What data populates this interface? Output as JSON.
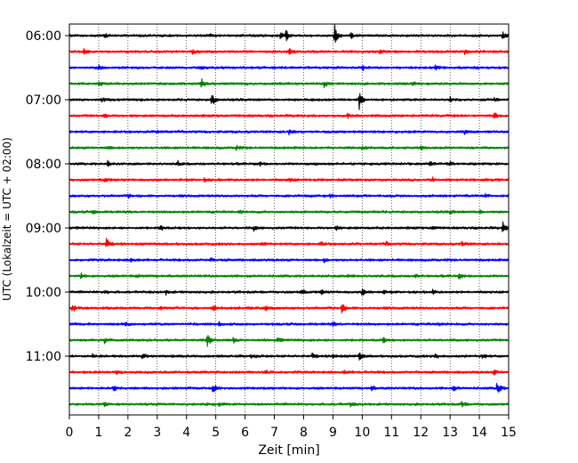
{
  "chart_data": {
    "type": "line",
    "title": "",
    "xlabel": "Zeit  [min]",
    "ylabel": "UTC (Lokalzeit = UTC + 02:00)",
    "xlim": [
      0,
      15
    ],
    "x_ticks": [
      0,
      1,
      2,
      3,
      4,
      5,
      6,
      7,
      8,
      9,
      10,
      11,
      12,
      13,
      14,
      15
    ],
    "y_tick_labels": [
      "06:00",
      "07:00",
      "08:00",
      "09:00",
      "10:00",
      "11:00"
    ],
    "y_tick_trace_index": [
      0,
      4,
      8,
      12,
      16,
      20
    ],
    "grid": "vertical dotted lines at each minute",
    "trace_color_cycle": [
      "#000000",
      "#ff0000",
      "#0000ff",
      "#008000"
    ],
    "trace_minutes": 15,
    "series": [
      {
        "start": "06:00",
        "events": [
          {
            "t": 1.2,
            "a": 2
          },
          {
            "t": 4.8,
            "a": 2
          },
          {
            "t": 7.2,
            "a": 5
          },
          {
            "t": 7.4,
            "a": 6
          },
          {
            "t": 9.05,
            "a": 13
          },
          {
            "t": 9.6,
            "a": 3
          },
          {
            "t": 14.8,
            "a": 4
          }
        ]
      },
      {
        "start": "06:15",
        "events": [
          {
            "t": 0.5,
            "a": 3
          },
          {
            "t": 4.2,
            "a": 2
          },
          {
            "t": 7.5,
            "a": 3
          },
          {
            "t": 10.6,
            "a": 2
          },
          {
            "t": 13.5,
            "a": 3
          }
        ]
      },
      {
        "start": "06:30",
        "events": [
          {
            "t": 1.0,
            "a": 2
          },
          {
            "t": 4.5,
            "a": 2
          },
          {
            "t": 10.0,
            "a": 3
          },
          {
            "t": 12.5,
            "a": 3
          },
          {
            "t": 13.8,
            "a": 2
          }
        ]
      },
      {
        "start": "06:45",
        "events": [
          {
            "t": 1.0,
            "a": 4
          },
          {
            "t": 4.5,
            "a": 7
          },
          {
            "t": 8.7,
            "a": 4
          },
          {
            "t": 11.7,
            "a": 3
          }
        ]
      },
      {
        "start": "07:00",
        "events": [
          {
            "t": 1.1,
            "a": 2
          },
          {
            "t": 4.85,
            "a": 10
          },
          {
            "t": 9.9,
            "a": 12
          },
          {
            "t": 13.0,
            "a": 3
          },
          {
            "t": 14.5,
            "a": 2
          }
        ]
      },
      {
        "start": "07:15",
        "events": [
          {
            "t": 1.2,
            "a": 3
          },
          {
            "t": 9.5,
            "a": 2
          },
          {
            "t": 14.5,
            "a": 4
          }
        ]
      },
      {
        "start": "07:30",
        "events": [
          {
            "t": 3.0,
            "a": 2
          },
          {
            "t": 7.5,
            "a": 3
          },
          {
            "t": 13.5,
            "a": 2
          }
        ]
      },
      {
        "start": "07:45",
        "events": [
          {
            "t": 1.3,
            "a": 2
          },
          {
            "t": 5.7,
            "a": 3
          },
          {
            "t": 10.0,
            "a": 2
          },
          {
            "t": 12.0,
            "a": 2
          }
        ]
      },
      {
        "start": "08:00",
        "events": [
          {
            "t": 1.3,
            "a": 3
          },
          {
            "t": 3.7,
            "a": 3
          },
          {
            "t": 6.5,
            "a": 2
          },
          {
            "t": 12.3,
            "a": 3
          },
          {
            "t": 13.0,
            "a": 2
          }
        ]
      },
      {
        "start": "08:15",
        "events": [
          {
            "t": 1.2,
            "a": 2
          },
          {
            "t": 4.6,
            "a": 2
          },
          {
            "t": 7.5,
            "a": 2
          },
          {
            "t": 12.4,
            "a": 2
          }
        ]
      },
      {
        "start": "08:30",
        "events": [
          {
            "t": 2.0,
            "a": 2
          },
          {
            "t": 8.9,
            "a": 2
          },
          {
            "t": 14.2,
            "a": 2
          }
        ]
      },
      {
        "start": "08:45",
        "events": [
          {
            "t": 0.8,
            "a": 2
          },
          {
            "t": 5.8,
            "a": 2
          },
          {
            "t": 13.0,
            "a": 2
          },
          {
            "t": 14.0,
            "a": 2
          }
        ]
      },
      {
        "start": "09:00",
        "events": [
          {
            "t": 3.1,
            "a": 4
          },
          {
            "t": 6.3,
            "a": 3
          },
          {
            "t": 9.1,
            "a": 2
          },
          {
            "t": 12.4,
            "a": 2
          },
          {
            "t": 14.8,
            "a": 7
          }
        ]
      },
      {
        "start": "09:15",
        "events": [
          {
            "t": 1.25,
            "a": 7
          },
          {
            "t": 6.6,
            "a": 2
          },
          {
            "t": 8.6,
            "a": 2
          },
          {
            "t": 10.8,
            "a": 2
          },
          {
            "t": 13.4,
            "a": 3
          }
        ]
      },
      {
        "start": "09:30",
        "events": [
          {
            "t": 2.1,
            "a": 2
          },
          {
            "t": 4.8,
            "a": 2
          },
          {
            "t": 8.7,
            "a": 2
          }
        ]
      },
      {
        "start": "09:45",
        "events": [
          {
            "t": 0.4,
            "a": 3
          },
          {
            "t": 2.3,
            "a": 2
          },
          {
            "t": 9.5,
            "a": 2
          },
          {
            "t": 11.8,
            "a": 2
          },
          {
            "t": 13.3,
            "a": 3
          }
        ]
      },
      {
        "start": "10:00",
        "events": [
          {
            "t": 1.2,
            "a": 2
          },
          {
            "t": 3.3,
            "a": 2
          },
          {
            "t": 7.9,
            "a": 3
          },
          {
            "t": 8.6,
            "a": 3
          },
          {
            "t": 10.0,
            "a": 4
          },
          {
            "t": 10.7,
            "a": 2
          },
          {
            "t": 12.4,
            "a": 2
          }
        ]
      },
      {
        "start": "10:15",
        "events": [
          {
            "t": 0.1,
            "a": 5
          },
          {
            "t": 3.1,
            "a": 2
          },
          {
            "t": 4.9,
            "a": 3
          },
          {
            "t": 6.7,
            "a": 3
          },
          {
            "t": 9.3,
            "a": 6
          }
        ]
      },
      {
        "start": "10:30",
        "events": [
          {
            "t": 1.9,
            "a": 2
          },
          {
            "t": 5.1,
            "a": 2
          },
          {
            "t": 9.0,
            "a": 2
          },
          {
            "t": 12.6,
            "a": 2
          }
        ]
      },
      {
        "start": "10:45",
        "events": [
          {
            "t": 1.2,
            "a": 3
          },
          {
            "t": 4.7,
            "a": 8
          },
          {
            "t": 5.6,
            "a": 3
          },
          {
            "t": 7.1,
            "a": 3
          },
          {
            "t": 10.7,
            "a": 3
          }
        ]
      },
      {
        "start": "11:00",
        "events": [
          {
            "t": 0.8,
            "a": 2
          },
          {
            "t": 2.5,
            "a": 3
          },
          {
            "t": 6.2,
            "a": 2
          },
          {
            "t": 8.3,
            "a": 3
          },
          {
            "t": 9.0,
            "a": 2
          },
          {
            "t": 9.9,
            "a": 5
          },
          {
            "t": 12.5,
            "a": 3
          },
          {
            "t": 14.1,
            "a": 3
          }
        ]
      },
      {
        "start": "11:15",
        "events": [
          {
            "t": 1.6,
            "a": 2
          },
          {
            "t": 6.7,
            "a": 2
          },
          {
            "t": 9.4,
            "a": 2
          },
          {
            "t": 14.5,
            "a": 3
          }
        ]
      },
      {
        "start": "11:30",
        "events": [
          {
            "t": 1.5,
            "a": 5
          },
          {
            "t": 4.9,
            "a": 5
          },
          {
            "t": 10.3,
            "a": 3
          },
          {
            "t": 13.1,
            "a": 3
          },
          {
            "t": 14.6,
            "a": 9
          }
        ]
      },
      {
        "start": "11:45",
        "events": [
          {
            "t": 1.2,
            "a": 2
          },
          {
            "t": 5.1,
            "a": 2
          },
          {
            "t": 9.6,
            "a": 2
          },
          {
            "t": 13.4,
            "a": 4
          }
        ]
      }
    ]
  }
}
